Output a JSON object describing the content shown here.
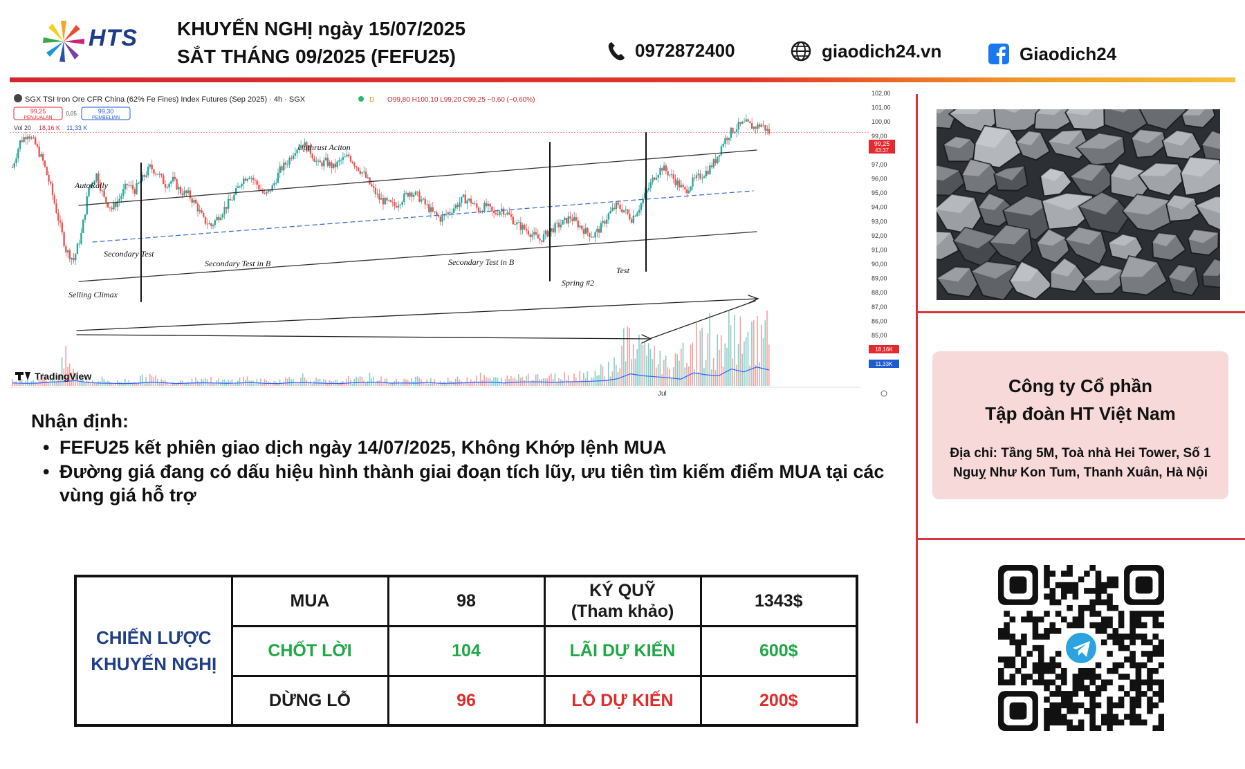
{
  "header": {
    "logo_text": "HTS",
    "title_line1": "KHUYẾN NGHỊ ngày 15/07/2025",
    "title_line2": "SẮT THÁNG 09/2025 (FEFU25)",
    "phone": "0972872400",
    "website": "giaodich24.vn",
    "facebook": "Giaodich24",
    "icons": [
      "phone-icon",
      "globe-icon",
      "facebook-icon"
    ]
  },
  "chart_data": {
    "type": "candlestick",
    "title": "SGX TSI Iron Ore CFR China (62% Fe Fines) Index Futures (Sep 2025) · 4h · SGX",
    "ohlc_text": "O99,80 H100,10 L99,20 C99,25 −0,60 (−0,60%)",
    "sell_box": {
      "price": "99,25",
      "label": "PENJUALAN"
    },
    "spread": "0,05",
    "buy_box": {
      "price": "99,30",
      "label": "PEMBELIAN"
    },
    "volume_label": "Vol 20",
    "volume_values": [
      "18,16 K",
      "11,33 K"
    ],
    "yaxis_ticks": [
      "102,00",
      "101,00",
      "100,00",
      "99,00",
      "98,00",
      "97,00",
      "96,00",
      "95,00",
      "94,00",
      "93,00",
      "92,00",
      "91,00",
      "90,00",
      "89,00",
      "88,00",
      "87,00",
      "86,00",
      "85,00"
    ],
    "ylim": [
      85,
      102
    ],
    "price_tag": {
      "value": "99,25",
      "time": "43:37",
      "color": "#e5292f"
    },
    "vol_tags": [
      {
        "value": "18,16K",
        "color": "#e5292f"
      },
      {
        "value": "11,33K",
        "color": "#1e5bd1"
      }
    ],
    "xaxis_label": "Jul",
    "watermark": "TradingView",
    "annotations": [
      "AutoRally",
      "Upthrust Aciton",
      "Secondary Test",
      "Secondary Test in B",
      "Secondary Test in B",
      "Selling Climax",
      "Spring #2",
      "Test"
    ],
    "price_path": [
      96.8,
      98.6,
      99.2,
      98.4,
      97.2,
      95.4,
      93.2,
      91.0,
      90.3,
      92.1,
      95.4,
      96.3,
      94.6,
      93.9,
      94.6,
      95.6,
      95.2,
      96.0,
      96.8,
      96.4,
      95.6,
      95.9,
      95.1,
      94.9,
      94.2,
      93.1,
      92.7,
      93.4,
      94.1,
      94.8,
      95.9,
      96.3,
      95.6,
      94.8,
      95.4,
      96.6,
      97.2,
      98.1,
      98.5,
      97.9,
      97.0,
      97.2,
      96.8,
      97.3,
      97.6,
      96.9,
      96.3,
      95.4,
      94.6,
      94.3,
      94.1,
      94.6,
      95.1,
      94.8,
      94.2,
      93.6,
      93.2,
      93.6,
      94.1,
      94.6,
      94.4,
      93.8,
      94.1,
      93.5,
      93.9,
      93.4,
      92.8,
      92.5,
      92.1,
      91.7,
      92.2,
      92.6,
      92.9,
      93.3,
      92.8,
      92.3,
      92.0,
      92.6,
      93.5,
      94.1,
      93.8,
      93.2,
      94.0,
      95.1,
      96.2,
      96.8,
      96.3,
      95.7,
      95.1,
      95.8,
      96.2,
      96.6,
      97.3,
      98.6,
      99.3,
      99.7,
      99.9,
      99.6,
      99.8,
      99.25
    ],
    "volume_path": [
      0.08,
      0.06,
      0.1,
      0.07,
      0.12,
      0.09,
      0.15,
      0.35,
      0.2,
      0.1,
      0.08,
      0.07,
      0.09,
      0.06,
      0.05,
      0.08,
      0.07,
      0.1,
      0.12,
      0.09,
      0.06,
      0.05,
      0.08,
      0.07,
      0.09,
      0.11,
      0.08,
      0.07,
      0.06,
      0.08,
      0.09,
      0.1,
      0.07,
      0.06,
      0.05,
      0.08,
      0.09,
      0.1,
      0.12,
      0.08,
      0.07,
      0.06,
      0.05,
      0.07,
      0.09,
      0.08,
      0.1,
      0.12,
      0.09,
      0.07,
      0.06,
      0.08,
      0.07,
      0.09,
      0.1,
      0.08,
      0.06,
      0.07,
      0.08,
      0.09,
      0.1,
      0.12,
      0.11,
      0.09,
      0.08,
      0.1,
      0.12,
      0.14,
      0.15,
      0.13,
      0.11,
      0.12,
      0.14,
      0.13,
      0.15,
      0.17,
      0.16,
      0.2,
      0.25,
      0.3,
      0.55,
      0.6,
      0.45,
      0.65,
      0.4,
      0.35,
      0.3,
      0.28,
      0.45,
      0.6,
      0.5,
      0.7,
      0.45,
      0.55,
      0.8,
      0.65,
      0.5,
      0.9,
      0.6,
      0.75
    ]
  },
  "analysis": {
    "heading": "Nhận định:",
    "bullets": [
      "FEFU25 kết phiên giao dịch ngày 14/07/2025, Không Khớp lệnh MUA",
      "Đường giá đang có dấu hiệu hình thành giai đoạn tích lũy, ưu tiên tìm kiếm điểm MUA tại các vùng giá hỗ trợ"
    ]
  },
  "strategy": {
    "label_line1": "CHIẾN LƯỢC",
    "label_line2": "KHUYẾN NGHỊ",
    "rows": [
      {
        "action": "MUA",
        "price": "98",
        "metric_line1": "KÝ QUỸ",
        "metric_line2": "(Tham khảo)",
        "amount": "1343$"
      },
      {
        "action": "CHỐT LỜI",
        "price": "104",
        "metric_line1": "LÃI DỰ KIẾN",
        "metric_line2": "",
        "amount": "600$"
      },
      {
        "action": "DỪNG LỖ",
        "price": "96",
        "metric_line1": "LỖ DỰ KIẾN",
        "metric_line2": "",
        "amount": "200$"
      }
    ]
  },
  "company": {
    "name_line1": "Công ty Cổ phần",
    "name_line2": "Tập đoàn HT Việt Nam",
    "address_line1": "Địa chỉ: Tầng 5M, Toà nhà Hei Tower, Số 1",
    "address_line2": "Nguỵ Như Kon Tum, Thanh Xuân, Hà Nội"
  },
  "colors": {
    "accent_red": "#d9343b",
    "label_blue": "#1f3f86",
    "profit_green": "#1fa845",
    "loss_red": "#e02b2b",
    "company_bg": "#f7d9d9"
  }
}
